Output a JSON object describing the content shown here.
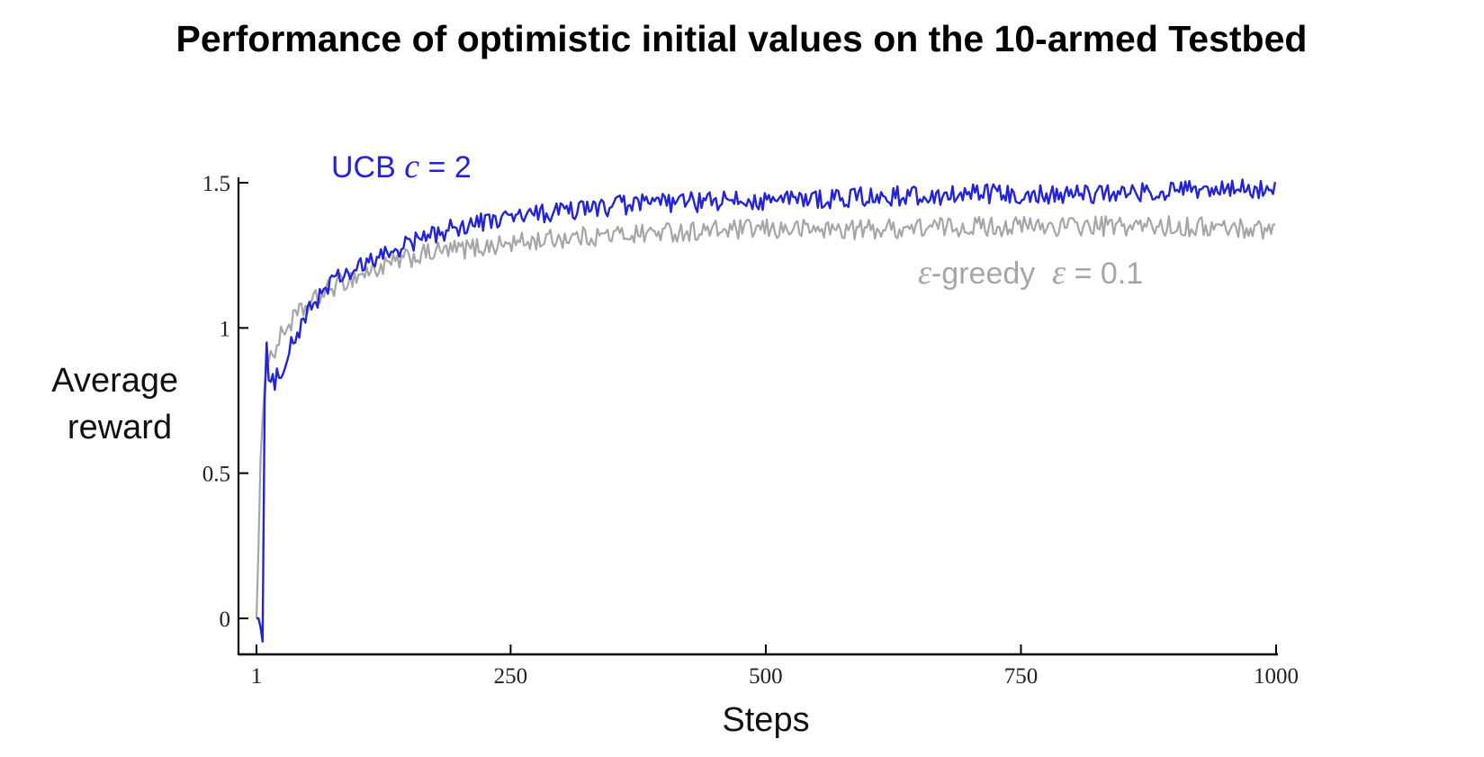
{
  "chart_data": {
    "type": "line",
    "title": "Performance of optimistic initial values on the 10-armed Testbed",
    "xlabel": "Steps",
    "ylabel_lines": [
      "Average",
      "reward"
    ],
    "xlim": [
      1,
      1000
    ],
    "ylim": [
      -0.12,
      1.55
    ],
    "x_ticks": [
      1,
      250,
      500,
      750,
      1000
    ],
    "x_tick_labels": [
      "1",
      "250",
      "500",
      "750",
      "1000"
    ],
    "y_ticks": [
      0,
      0.5,
      1,
      1.5
    ],
    "y_tick_labels": [
      "0",
      "0.5",
      "1",
      "1.5"
    ],
    "grid": false,
    "legend": "inline labels",
    "series": [
      {
        "key": "egreedy",
        "label_prefix": "ε",
        "label_middle": "-greedy  ",
        "label_var": "ε",
        "label_suffix": " = 0.1",
        "color": "#a6a6a6",
        "x": [
          1,
          3,
          5,
          8,
          10,
          12,
          15,
          20,
          25,
          30,
          40,
          50,
          60,
          75,
          100,
          125,
          150,
          175,
          200,
          250,
          300,
          350,
          400,
          500,
          600,
          700,
          800,
          900,
          1000
        ],
        "y": [
          0.0,
          0.25,
          0.55,
          0.75,
          0.85,
          0.88,
          0.9,
          0.93,
          0.97,
          1.0,
          1.04,
          1.07,
          1.1,
          1.14,
          1.18,
          1.21,
          1.24,
          1.26,
          1.27,
          1.29,
          1.31,
          1.32,
          1.33,
          1.34,
          1.34,
          1.35,
          1.35,
          1.35,
          1.34
        ]
      },
      {
        "key": "ucb",
        "label_prefix": "UCB  ",
        "label_var": "c",
        "label_suffix": " = 2",
        "color": "#2323d9",
        "x": [
          1,
          3,
          5,
          7,
          8,
          9,
          10,
          11,
          12,
          13,
          15,
          20,
          25,
          30,
          40,
          50,
          60,
          75,
          100,
          125,
          150,
          175,
          200,
          250,
          300,
          350,
          400,
          500,
          600,
          700,
          800,
          900,
          1000
        ],
        "y": [
          0.0,
          0.0,
          -0.03,
          -0.08,
          0.25,
          0.75,
          1.08,
          0.95,
          0.88,
          0.82,
          0.8,
          0.82,
          0.86,
          0.9,
          0.97,
          1.04,
          1.1,
          1.16,
          1.2,
          1.25,
          1.29,
          1.32,
          1.35,
          1.38,
          1.4,
          1.42,
          1.43,
          1.44,
          1.45,
          1.46,
          1.46,
          1.47,
          1.48
        ]
      }
    ]
  }
}
